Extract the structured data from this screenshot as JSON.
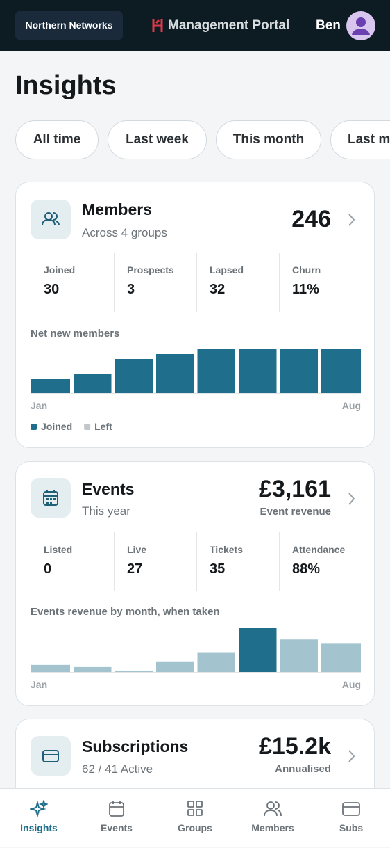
{
  "header": {
    "org": "Northern Networks",
    "portal": "Management Portal",
    "user": "Ben"
  },
  "page_title": "Insights",
  "filters": [
    "All time",
    "Last week",
    "This month",
    "Last month"
  ],
  "cards": [
    {
      "title": "Members",
      "subtitle": "Across 4 groups",
      "total": "246",
      "stats": [
        {
          "label": "Joined",
          "value": "30"
        },
        {
          "label": "Prospects",
          "value": "3"
        },
        {
          "label": "Lapsed",
          "value": "32"
        },
        {
          "label": "Churn",
          "value": "11%"
        }
      ],
      "chart": {
        "type": "bar",
        "title": "Net new members",
        "categories": [
          "Jan",
          null,
          null,
          null,
          null,
          null,
          null,
          "Aug"
        ],
        "series": [
          {
            "name": "Joined",
            "color": "#1f6e8c",
            "values": [
              20,
              28,
              49,
              56,
              63,
              63,
              63,
              63
            ]
          },
          {
            "name": "Left",
            "color": "#c4c7ca",
            "values": [
              0,
              0,
              0,
              0,
              0,
              0,
              0,
              0
            ]
          }
        ]
      }
    },
    {
      "title": "Events",
      "subtitle": "This year",
      "total": "£3,161",
      "total_label": "Event revenue",
      "stats": [
        {
          "label": "Listed",
          "value": "0"
        },
        {
          "label": "Live",
          "value": "27"
        },
        {
          "label": "Tickets",
          "value": "35"
        },
        {
          "label": "Attendance",
          "value": "88%"
        }
      ],
      "chart": {
        "type": "bar",
        "title": "Events revenue by month, when taken",
        "categories": [
          "Jan",
          null,
          null,
          null,
          null,
          null,
          null,
          "Aug"
        ],
        "values": [
          10,
          7,
          2,
          15,
          28,
          62,
          46,
          40
        ],
        "colors": [
          "#a3c3cf",
          "#a3c3cf",
          "#a3c3cf",
          "#a3c3cf",
          "#a3c3cf",
          "#1f6e8c",
          "#a3c3cf",
          "#a3c3cf"
        ]
      }
    },
    {
      "title": "Subscriptions",
      "subtitle": "62 / 41 Active",
      "total": "£15.2k",
      "total_label": "Annualised"
    }
  ],
  "nav": [
    "Insights",
    "Events",
    "Groups",
    "Members",
    "Subs"
  ]
}
